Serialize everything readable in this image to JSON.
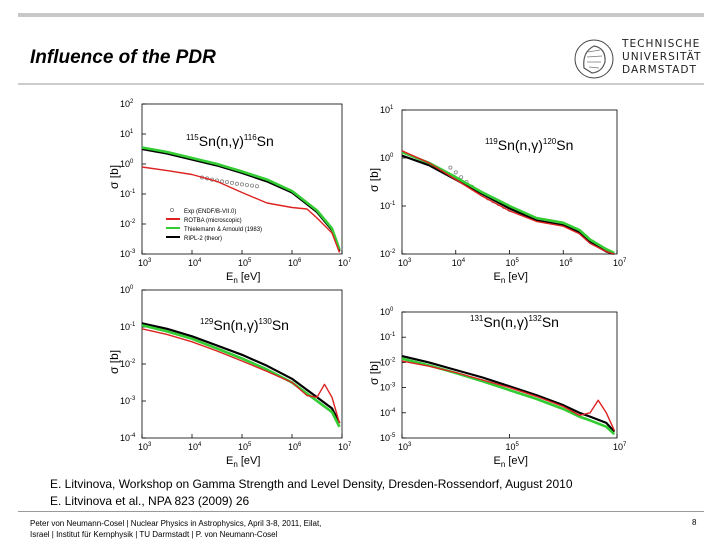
{
  "slide": {
    "title": "Influence of the PDR",
    "logo_lines": [
      "TECHNISCHE",
      "UNIVERSITÄT",
      "DARMSTADT"
    ],
    "citations": [
      "E. Litvinova, Workshop on Gamma Strength and Level Density, Dresden-Rossendorf, August 2010",
      "E. Litvinova et al., NPA 823 (2009) 26"
    ],
    "footer_lines": [
      "Peter von Neumann-Cosel | Nuclear Physics in Astrophysics, April 3-8, 2011, Eilat,",
      "Israel | Institut für Kernphysik | TU Darmstadt | P. von Neumann-Cosel"
    ],
    "page_number": "8"
  },
  "chart_data": [
    {
      "type": "line",
      "title": "115Sn(n,γ)116Sn",
      "title_parts": {
        "a_pre": "115",
        "el1": "Sn(n,γ)",
        "a_post": "116",
        "el2": "Sn"
      },
      "xlabel": "En [eV]",
      "ylabel": "σ [b]",
      "xlim_log10": [
        3,
        7
      ],
      "ylim_log10": [
        -3,
        2
      ],
      "xticks": [
        3,
        4,
        5,
        6,
        7
      ],
      "yticks": [
        -3,
        -2,
        -1,
        0,
        1,
        2
      ],
      "legend": [
        "Exp (ENDF/B-VII.0)",
        "ROTBA (microscopic)",
        "Thielemann & Arnould (1983)",
        "RIPL-2 (theor)"
      ],
      "series": [
        {
          "name": "Exp (ENDF/B-VII.0)",
          "color": "#888888",
          "style": "points",
          "x_log10": [
            4.2,
            4.3,
            4.4,
            4.5,
            4.6,
            4.7,
            4.8,
            4.9,
            5.0,
            5.1,
            5.2,
            5.3
          ],
          "y_log10": [
            -0.45,
            -0.48,
            -0.52,
            -0.55,
            -0.58,
            -0.6,
            -0.63,
            -0.66,
            -0.68,
            -0.7,
            -0.72,
            -0.74
          ]
        },
        {
          "name": "RIPL-2 (theor)",
          "color": "#000000",
          "x_log10": [
            3,
            3.5,
            4,
            4.5,
            5,
            5.5,
            6,
            6.5,
            6.8,
            6.95
          ],
          "y_log10": [
            0.5,
            0.35,
            0.15,
            -0.05,
            -0.3,
            -0.58,
            -0.95,
            -1.6,
            -2.2,
            -2.9
          ]
        },
        {
          "name": "Thielemann & Arnould (1983)",
          "color": "#33cc33",
          "x_log10": [
            3,
            3.5,
            4,
            4.5,
            5,
            5.5,
            6,
            6.5,
            6.8,
            6.95
          ],
          "y_log10": [
            0.55,
            0.4,
            0.2,
            0,
            -0.25,
            -0.52,
            -0.9,
            -1.55,
            -2.15,
            -2.85
          ]
        },
        {
          "name": "ROTBA (microscopic)",
          "color": "#dd2222",
          "x_log10": [
            3,
            3.5,
            4,
            4.5,
            5,
            5.5,
            6,
            6.3,
            6.5,
            6.8,
            6.95
          ],
          "y_log10": [
            -0.1,
            -0.22,
            -0.35,
            -0.58,
            -0.95,
            -1.3,
            -1.45,
            -1.5,
            -1.8,
            -2.3,
            -2.95
          ]
        }
      ]
    },
    {
      "type": "line",
      "title": "119Sn(n,γ)120Sn",
      "title_parts": {
        "a_pre": "119",
        "el1": "Sn(n,γ)",
        "a_post": "120",
        "el2": "Sn"
      },
      "xlabel": "En [eV]",
      "ylabel": "σ [b]",
      "xlim_log10": [
        3,
        7
      ],
      "ylim_log10": [
        -2,
        1
      ],
      "xticks": [
        3,
        4,
        5,
        6,
        7
      ],
      "yticks": [
        -2,
        -1,
        0,
        1
      ],
      "series": [
        {
          "name": "Exp (ENDF/B-VII.0)",
          "color": "#888888",
          "style": "points",
          "x_log10": [
            3.9,
            4.0,
            4.1,
            4.2,
            4.3,
            4.4,
            4.5,
            4.6,
            4.7,
            4.8,
            4.9,
            5.0
          ],
          "y_log10": [
            -0.2,
            -0.3,
            -0.4,
            -0.5,
            -0.6,
            -0.68,
            -0.76,
            -0.84,
            -0.9,
            -0.96,
            -1.02,
            -1.08
          ]
        },
        {
          "name": "RIPL-2 (theor)",
          "color": "#000000",
          "x_log10": [
            3,
            3.5,
            4,
            4.5,
            5,
            5.5,
            6,
            6.3,
            6.5,
            6.8,
            6.95
          ],
          "y_log10": [
            0.05,
            -0.15,
            -0.45,
            -0.75,
            -1.05,
            -1.3,
            -1.4,
            -1.55,
            -1.75,
            -1.95,
            -2
          ]
        },
        {
          "name": "Thielemann & Arnould (1983)",
          "color": "#33cc33",
          "x_log10": [
            3,
            3.5,
            4,
            4.5,
            5,
            5.5,
            6,
            6.3,
            6.5,
            6.8,
            6.95
          ],
          "y_log10": [
            0.12,
            -0.1,
            -0.4,
            -0.72,
            -1.0,
            -1.25,
            -1.35,
            -1.5,
            -1.7,
            -1.9,
            -1.98
          ]
        },
        {
          "name": "ROTBA (microscopic)",
          "color": "#dd2222",
          "x_log10": [
            3,
            3.5,
            4,
            4.5,
            5,
            5.5,
            6,
            6.3,
            6.5,
            6.8,
            6.95
          ],
          "y_log10": [
            0.15,
            -0.1,
            -0.45,
            -0.8,
            -1.1,
            -1.32,
            -1.42,
            -1.58,
            -1.78,
            -1.95,
            -2
          ]
        }
      ]
    },
    {
      "type": "line",
      "title": "129Sn(n,γ)130Sn",
      "title_parts": {
        "a_pre": "129",
        "el1": "Sn(n,γ)",
        "a_post": "130",
        "el2": "Sn"
      },
      "xlabel": "En [eV]",
      "ylabel": "σ [b]",
      "xlim_log10": [
        3,
        7
      ],
      "ylim_log10": [
        -4,
        0
      ],
      "xticks": [
        3,
        4,
        5,
        6,
        7
      ],
      "yticks": [
        -4,
        -3,
        -2,
        -1,
        0
      ],
      "series": [
        {
          "name": "RIPL-2 (theor)",
          "color": "#000000",
          "x_log10": [
            3,
            3.5,
            4,
            4.5,
            5,
            5.5,
            6,
            6.3,
            6.5,
            6.8,
            6.95
          ],
          "y_log10": [
            -0.9,
            -1.05,
            -1.25,
            -1.5,
            -1.75,
            -2.05,
            -2.4,
            -2.7,
            -2.9,
            -3.2,
            -3.6
          ]
        },
        {
          "name": "Thielemann & Arnould (1983)",
          "color": "#33cc33",
          "x_log10": [
            3,
            3.5,
            4,
            4.5,
            5,
            5.5,
            6,
            6.3,
            6.5,
            6.8,
            6.95
          ],
          "y_log10": [
            -0.95,
            -1.12,
            -1.32,
            -1.58,
            -1.85,
            -2.15,
            -2.5,
            -2.8,
            -3.0,
            -3.3,
            -3.7
          ]
        },
        {
          "name": "ROTBA (microscopic)",
          "color": "#dd2222",
          "x_log10": [
            3,
            3.5,
            4,
            4.5,
            5,
            5.5,
            6,
            6.3,
            6.5,
            6.65,
            6.8,
            6.95
          ],
          "y_log10": [
            -1.05,
            -1.2,
            -1.4,
            -1.65,
            -1.92,
            -2.2,
            -2.5,
            -2.85,
            -2.9,
            -2.55,
            -2.9,
            -3.6
          ]
        }
      ]
    },
    {
      "type": "line",
      "title": "131Sn(n,γ)132Sn",
      "title_parts": {
        "a_pre": "131",
        "el1": "Sn(n,γ)",
        "a_post": "132",
        "el2": "Sn"
      },
      "xlabel": "En [eV]",
      "ylabel": "σ [b]",
      "xlim_log10": [
        3,
        7
      ],
      "ylim_log10": [
        -5,
        0
      ],
      "xticks": [
        3,
        5,
        7
      ],
      "yticks": [
        -5,
        -4,
        -3,
        -2,
        -1,
        0
      ],
      "series": [
        {
          "name": "RIPL-2 (theor)",
          "color": "#000000",
          "x_log10": [
            3,
            3.5,
            4,
            4.5,
            5,
            5.5,
            6,
            6.3,
            6.5,
            6.8,
            6.95
          ],
          "y_log10": [
            -1.75,
            -2.0,
            -2.3,
            -2.6,
            -2.95,
            -3.3,
            -3.7,
            -4.0,
            -4.15,
            -4.4,
            -4.75
          ]
        },
        {
          "name": "Thielemann & Arnould (1983)",
          "color": "#33cc33",
          "x_log10": [
            3,
            3.5,
            4,
            4.5,
            5,
            5.5,
            6,
            6.3,
            6.5,
            6.8,
            6.95
          ],
          "y_log10": [
            -1.85,
            -2.12,
            -2.42,
            -2.75,
            -3.1,
            -3.45,
            -3.85,
            -4.15,
            -4.3,
            -4.55,
            -4.85
          ]
        },
        {
          "name": "ROTBA (microscopic)",
          "color": "#dd2222",
          "x_log10": [
            3,
            3.5,
            4,
            4.5,
            5,
            5.5,
            6,
            6.3,
            6.5,
            6.65,
            6.8,
            6.95
          ],
          "y_log10": [
            -1.95,
            -2.15,
            -2.4,
            -2.7,
            -3.0,
            -3.35,
            -3.75,
            -4.1,
            -4.0,
            -3.5,
            -4.0,
            -4.7
          ]
        }
      ]
    }
  ]
}
